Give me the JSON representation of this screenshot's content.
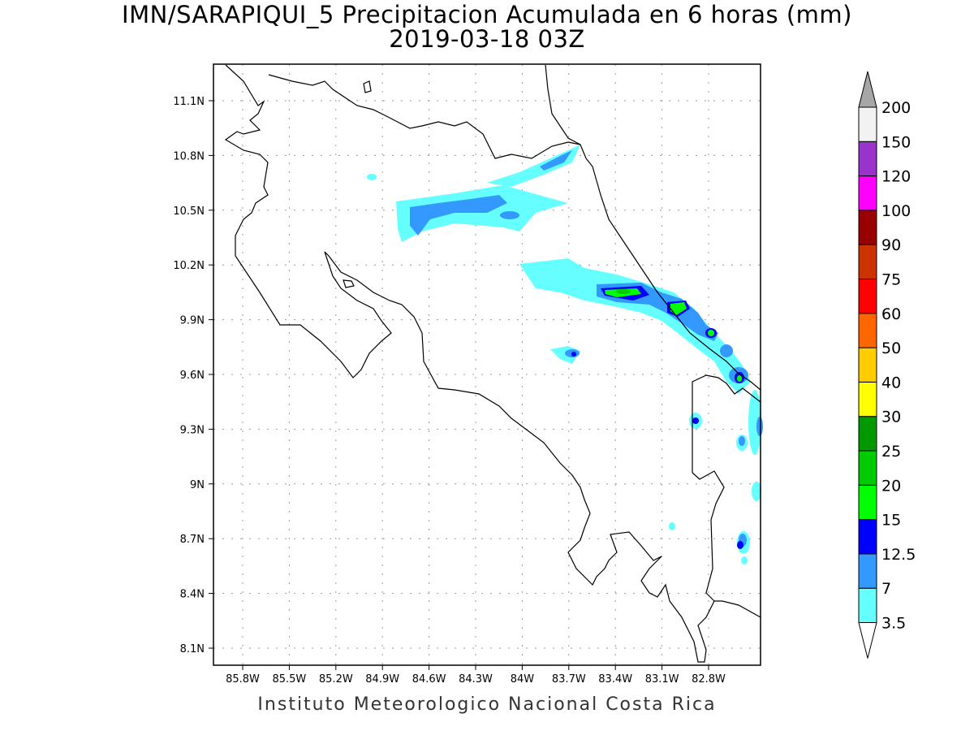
{
  "title": "IMN/SARAPIQUI_5 Precipitacion Acumulada en 6 horas (mm)",
  "subtitle": "2019-03-18 03Z",
  "footer": "Instituto Meteorologico Nacional Costa Rica",
  "map": {
    "lon_ticks": [
      "85.8W",
      "85.5W",
      "85.2W",
      "84.9W",
      "84.6W",
      "84.3W",
      "84W",
      "83.7W",
      "83.4W",
      "83.1W",
      "82.8W"
    ],
    "lat_ticks": [
      "11.1N",
      "10.8N",
      "10.5N",
      "10.2N",
      "9.9N",
      "9.6N",
      "9.3N",
      "9N",
      "8.7N",
      "8.4N",
      "8.1N"
    ]
  },
  "colorbar": {
    "labels": [
      "3.5",
      "7",
      "12.5",
      "15",
      "20",
      "25",
      "30",
      "40",
      "50",
      "60",
      "75",
      "90",
      "100",
      "120",
      "150",
      "200"
    ],
    "colors": [
      "#66ffff",
      "#3399ff",
      "#0000ff",
      "#00ff00",
      "#00cc00",
      "#009900",
      "#ffff00",
      "#ffcc00",
      "#ff6600",
      "#ff0000",
      "#cc3300",
      "#990000",
      "#ff00ff",
      "#9933cc",
      "#f2f2f2"
    ],
    "under_color": "#ffffff",
    "over_color": "#a6a6a6"
  }
}
